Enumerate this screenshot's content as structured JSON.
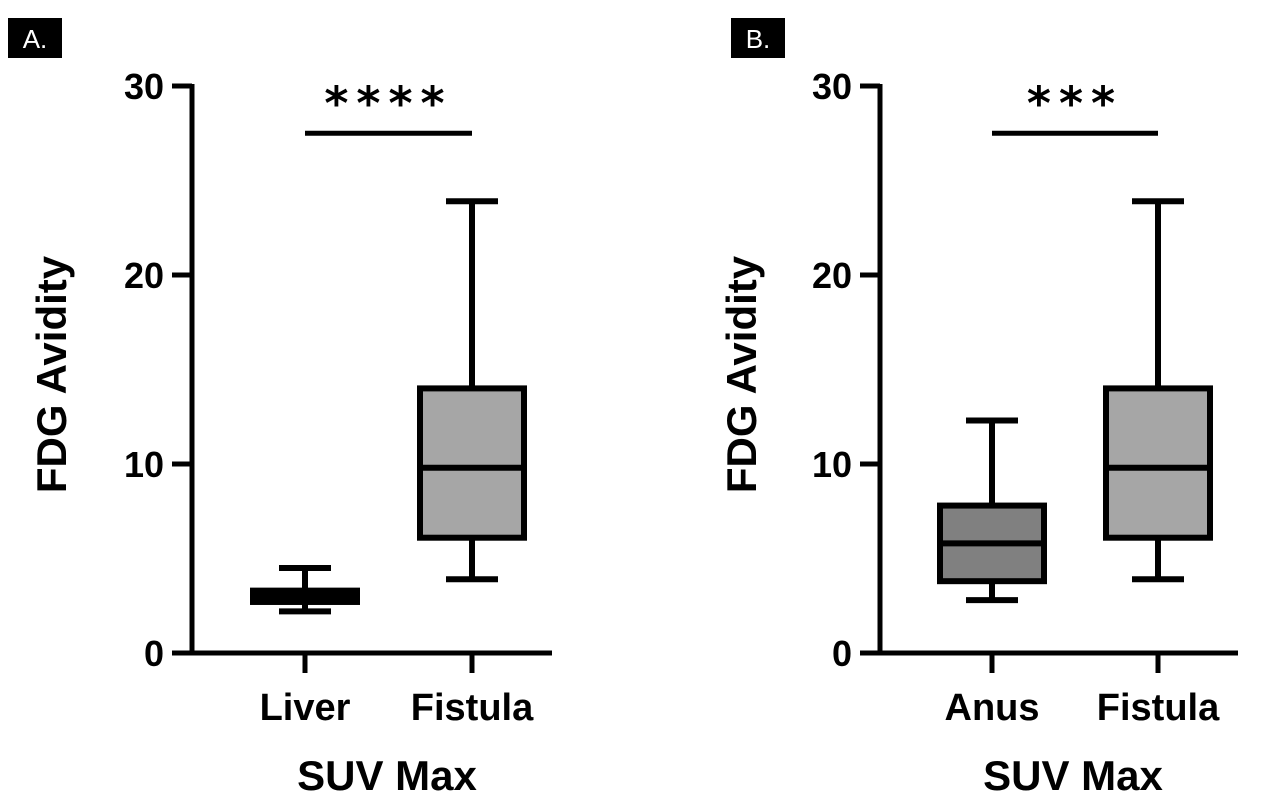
{
  "chart_data": [
    {
      "panel_label": "A.",
      "type": "box",
      "ylabel": "FDG Avidity",
      "xlabel": "SUV Max",
      "ylim": [
        0,
        30
      ],
      "yticks": [
        "0",
        "10",
        "20",
        "30"
      ],
      "categories": [
        "Liver",
        "Fistula"
      ],
      "boxes": [
        {
          "category": "Liver",
          "min": 2.2,
          "q1": 2.7,
          "median": 3.0,
          "q3": 3.3,
          "max": 4.5,
          "fill": "#808080"
        },
        {
          "category": "Fistula",
          "min": 3.9,
          "q1": 6.1,
          "median": 9.8,
          "q3": 14.0,
          "max": 23.9,
          "fill": "#a6a6a6"
        }
      ],
      "significance": {
        "label": "****",
        "between": [
          "Liver",
          "Fistula"
        ],
        "y": 27.5
      }
    },
    {
      "panel_label": "B.",
      "type": "box",
      "ylabel": "FDG Avidity",
      "xlabel": "SUV Max",
      "ylim": [
        0,
        30
      ],
      "yticks": [
        "0",
        "10",
        "20",
        "30"
      ],
      "categories": [
        "Anus",
        "Fistula"
      ],
      "boxes": [
        {
          "category": "Anus",
          "min": 2.8,
          "q1": 3.8,
          "median": 5.8,
          "q3": 7.8,
          "max": 12.3,
          "fill": "#808080"
        },
        {
          "category": "Fistula",
          "min": 3.9,
          "q1": 6.1,
          "median": 9.8,
          "q3": 14.0,
          "max": 23.9,
          "fill": "#a6a6a6"
        }
      ],
      "significance": {
        "label": "***",
        "between": [
          "Anus",
          "Fistula"
        ],
        "y": 27.5
      }
    }
  ]
}
